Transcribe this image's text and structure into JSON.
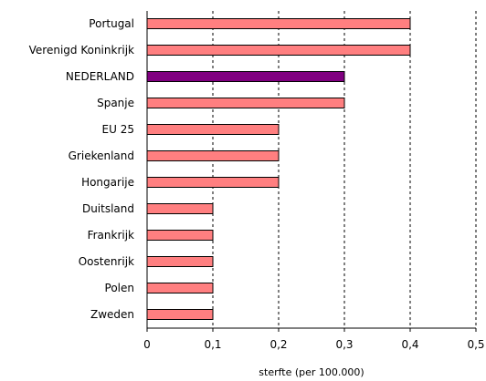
{
  "chart_data": {
    "type": "bar",
    "orientation": "horizontal",
    "categories": [
      "Portugal",
      "Verenigd Koninkrijk",
      "NEDERLAND",
      "Spanje",
      "EU 25",
      "Griekenland",
      "Hongarije",
      "Duitsland",
      "Frankrijk",
      "Oostenrijk",
      "Polen",
      "Zweden"
    ],
    "values": [
      0.4,
      0.4,
      0.3,
      0.3,
      0.2,
      0.2,
      0.2,
      0.1,
      0.1,
      0.1,
      0.1,
      0.1
    ],
    "highlight_index": 2,
    "xlabel": "sterfte (per 100.000)",
    "xlim": [
      0,
      0.5
    ],
    "xticks": [
      "0",
      "0,1",
      "0,2",
      "0,3",
      "0,4",
      "0,5"
    ],
    "xtick_values": [
      0,
      0.1,
      0.2,
      0.3,
      0.4,
      0.5
    ],
    "grid": "vertical dashed",
    "legend": "none",
    "colors": {
      "bar": "#ff7f80",
      "bar_highlight": "#800080",
      "bar_stroke": "#000000",
      "grid": "#000000",
      "background": "#ffffff"
    }
  }
}
